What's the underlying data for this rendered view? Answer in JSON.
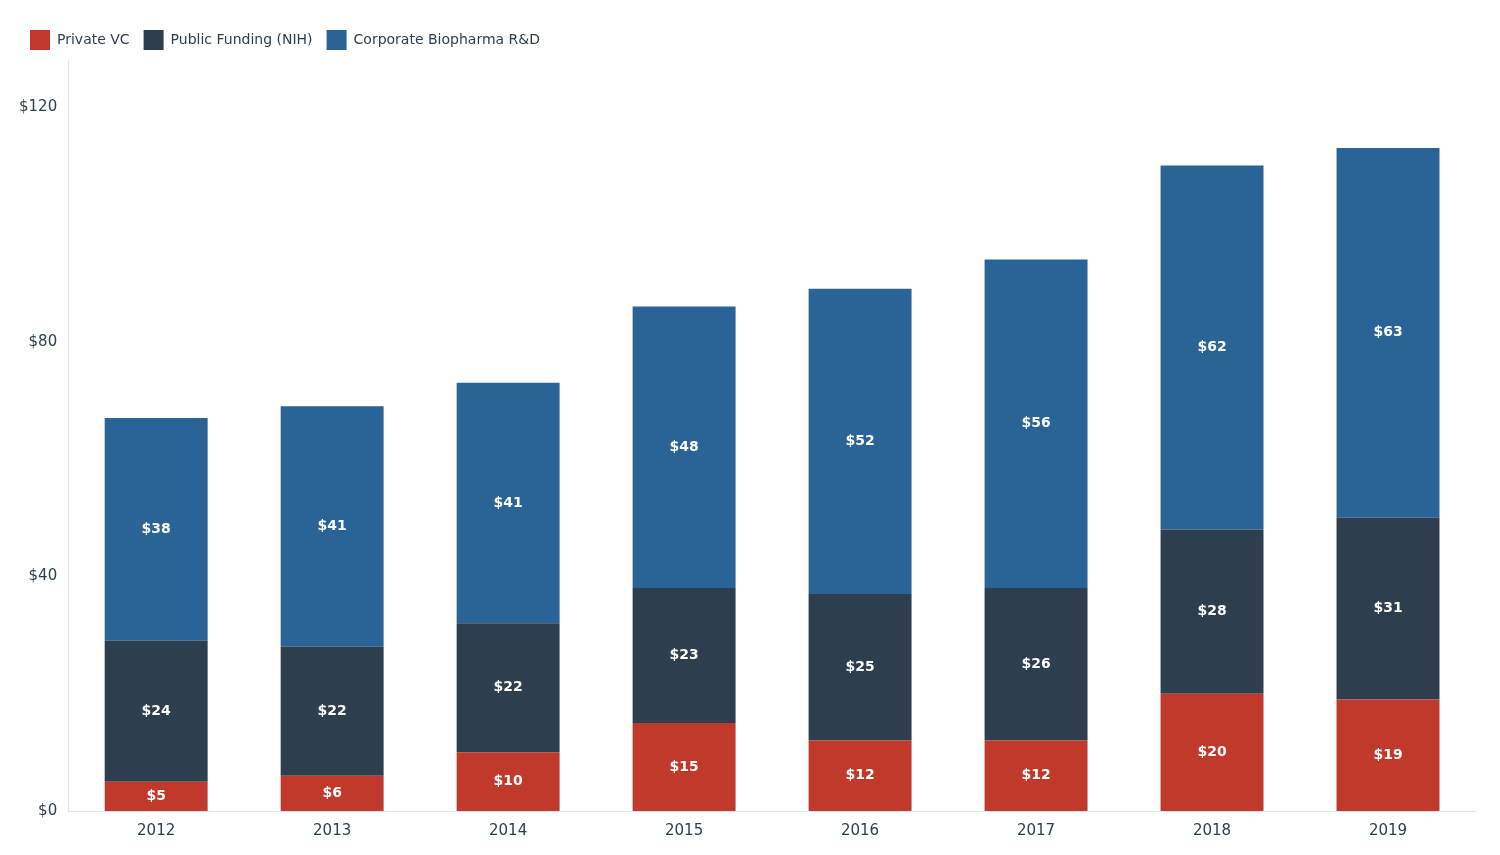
{
  "chart_data": {
    "type": "bar",
    "stacked": true,
    "categories": [
      "2012",
      "2013",
      "2014",
      "2015",
      "2016",
      "2017",
      "2018",
      "2019"
    ],
    "series": [
      {
        "name": "Private VC",
        "color": "#c0392b",
        "values": [
          5,
          6,
          10,
          15,
          12,
          12,
          20,
          19
        ],
        "value_labels": [
          "$5",
          "$6",
          "$10",
          "$15",
          "$12",
          "$12",
          "$20",
          "$19"
        ]
      },
      {
        "name": "Public Funding (NIH)",
        "color": "#2d3e4e",
        "values": [
          24,
          22,
          22,
          23,
          25,
          26,
          28,
          31
        ],
        "value_labels": [
          "$24",
          "$22",
          "$22",
          "$23",
          "$25",
          "$26",
          "$28",
          "$31"
        ]
      },
      {
        "name": "Corporate Biopharma R&D",
        "color": "#2a6496",
        "values": [
          38,
          41,
          41,
          48,
          52,
          56,
          62,
          63
        ],
        "value_labels": [
          "$38",
          "$41",
          "$41",
          "$48",
          "$52",
          "$56",
          "$62",
          "$63"
        ]
      }
    ],
    "ylim": [
      0,
      128
    ],
    "yticks": [
      {
        "value": 0,
        "label": "$0"
      },
      {
        "value": 40,
        "label": "$40"
      },
      {
        "value": 80,
        "label": "$80"
      },
      {
        "value": 120,
        "label": "$120"
      }
    ],
    "grid": false,
    "legend": "upper left",
    "data_labels": true
  }
}
